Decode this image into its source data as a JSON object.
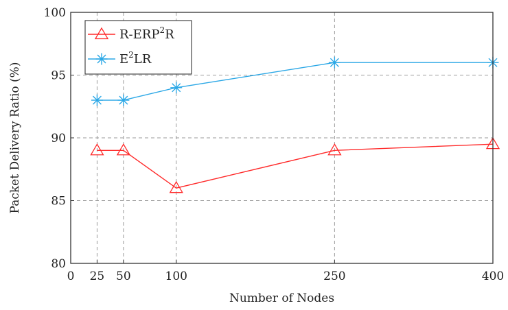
{
  "chart_data": {
    "type": "line",
    "x": [
      25,
      50,
      100,
      250,
      400
    ],
    "series": [
      {
        "name": "R-ERP²R",
        "name_parts": {
          "base": "R-ERP",
          "sup": "2",
          "tail": "R"
        },
        "color": "#ff2a2a",
        "marker": "triangle",
        "values": [
          89,
          89,
          86,
          89,
          89.5
        ]
      },
      {
        "name": "E²LR",
        "name_parts": {
          "base": "E",
          "sup": "2",
          "tail": "LR"
        },
        "color": "#2aa7e6",
        "marker": "asterisk",
        "values": [
          93,
          93,
          94,
          96,
          96
        ]
      }
    ],
    "xlabel": "Number of Nodes",
    "ylabel": "Packet Delivery Ratio (%)",
    "xlim": [
      0,
      400
    ],
    "ylim": [
      80,
      100
    ],
    "xticks": [
      0,
      25,
      50,
      100,
      250,
      400
    ],
    "yticks": [
      80,
      85,
      90,
      95,
      100
    ],
    "grid": true,
    "legend_position": "top-left"
  }
}
